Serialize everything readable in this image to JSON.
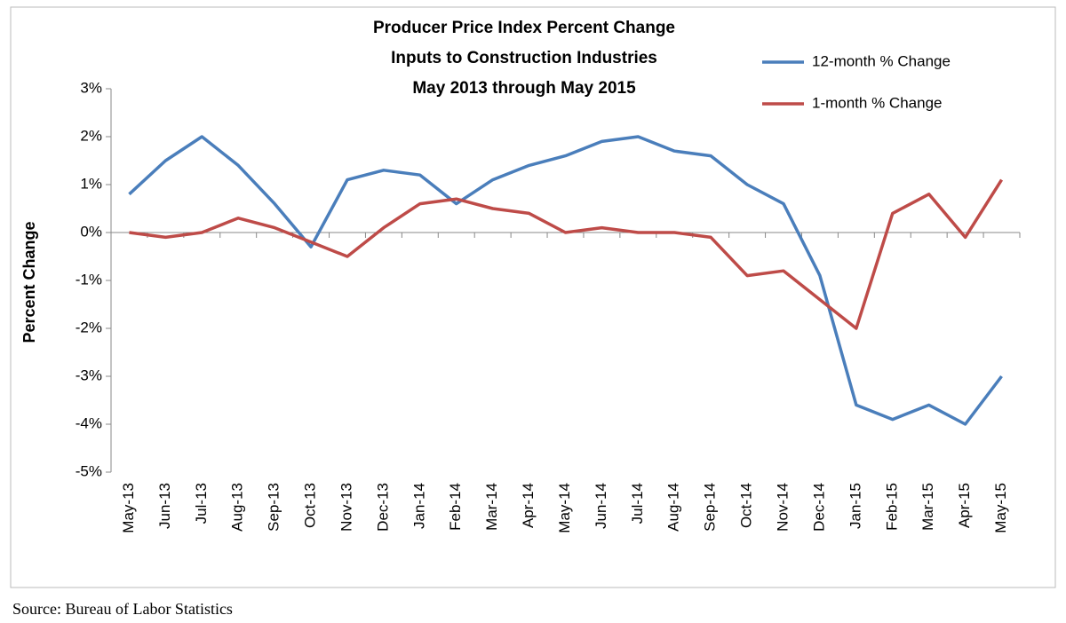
{
  "chart_data": {
    "type": "line",
    "title": [
      "Producer Price Index Percent Change",
      "Inputs to Construction Industries",
      "May 2013 through May 2015"
    ],
    "y_label": "Percent Change",
    "source": "Source:  Bureau of Labor Statistics",
    "categories": [
      "May-13",
      "Jun-13",
      "Jul-13",
      "Aug-13",
      "Sep-13",
      "Oct-13",
      "Nov-13",
      "Dec-13",
      "Jan-14",
      "Feb-14",
      "Mar-14",
      "Apr-14",
      "May-14",
      "Jun-14",
      "Jul-14",
      "Aug-14",
      "Sep-14",
      "Oct-14",
      "Nov-14",
      "Dec-14",
      "Jan-15",
      "Feb-15",
      "Mar-15",
      "Apr-15",
      "May-15"
    ],
    "series": [
      {
        "name": "12-month % Change",
        "color": "#4a7ebb",
        "values": [
          0.8,
          1.5,
          2.0,
          1.4,
          0.6,
          -0.3,
          1.1,
          1.3,
          1.2,
          0.6,
          1.1,
          1.4,
          1.6,
          1.9,
          2.0,
          1.7,
          1.6,
          1.0,
          0.6,
          -0.9,
          -3.6,
          -3.9,
          -3.6,
          -4.0,
          -3.0
        ]
      },
      {
        "name": "1-month % Change",
        "color": "#be4b48",
        "values": [
          0.0,
          -0.1,
          0.0,
          0.3,
          0.1,
          -0.2,
          -0.5,
          0.1,
          0.6,
          0.7,
          0.5,
          0.4,
          0.0,
          0.1,
          0.0,
          0.0,
          -0.1,
          -0.9,
          -0.8,
          -1.4,
          -2.0,
          0.4,
          0.8,
          -0.1,
          1.1
        ]
      }
    ],
    "ylim": [
      -5,
      3
    ],
    "yticks": [
      {
        "value": -5,
        "label": "-5%"
      },
      {
        "value": -4,
        "label": "-4%"
      },
      {
        "value": -3,
        "label": "-3%"
      },
      {
        "value": -2,
        "label": "-2%"
      },
      {
        "value": -1,
        "label": "-1%"
      },
      {
        "value": 0,
        "label": "0%"
      },
      {
        "value": 1,
        "label": "1%"
      },
      {
        "value": 2,
        "label": "2%"
      },
      {
        "value": 3,
        "label": "3%"
      }
    ],
    "grid": false,
    "legend": "top-right"
  }
}
